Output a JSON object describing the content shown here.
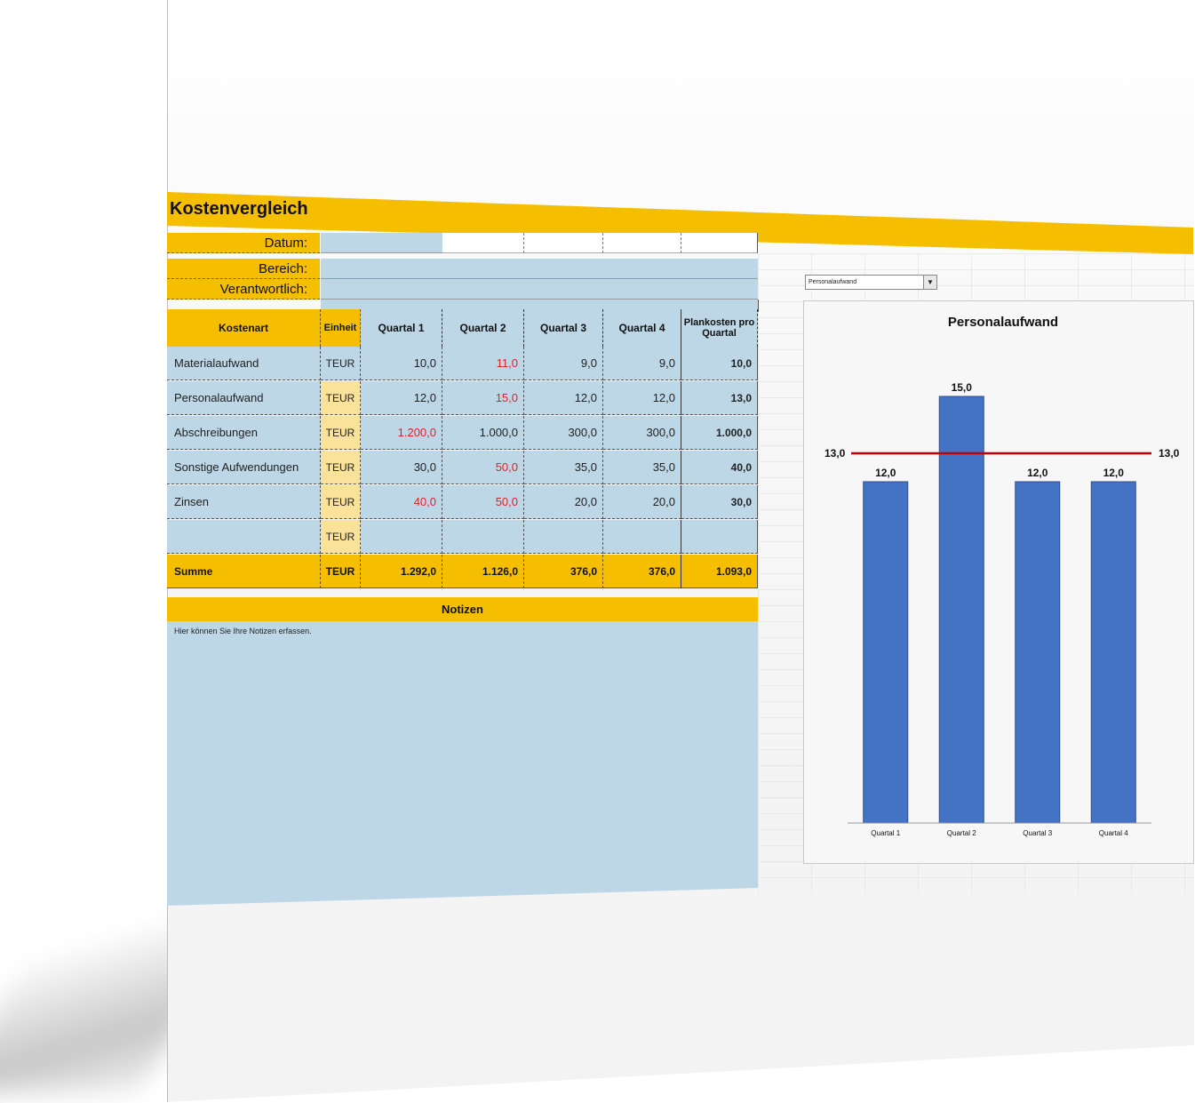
{
  "title": "Kostenvergleich",
  "info": {
    "datum_label": "Datum:",
    "bereich_label": "Bereich:",
    "verantwortlich_label": "Verantwortlich:"
  },
  "table": {
    "headers": [
      "Kostenart",
      "Einheit",
      "Quartal 1",
      "Quartal 2",
      "Quartal 3",
      "Quartal 4",
      "Plankosten pro Quartal"
    ],
    "rows": [
      {
        "name": "Materialaufwand",
        "unit": "TEUR",
        "q1": "10,0",
        "q2": "11,0",
        "q3": "9,0",
        "q4": "9,0",
        "plan": "10,0"
      },
      {
        "name": "Personalaufwand",
        "unit": "TEUR",
        "q1": "12,0",
        "q2": "15,0",
        "q3": "12,0",
        "q4": "12,0",
        "plan": "13,0"
      },
      {
        "name": "Abschreibungen",
        "unit": "TEUR",
        "q1": "1.200,0",
        "q2": "1.000,0",
        "q3": "300,0",
        "q4": "300,0",
        "plan": "1.000,0"
      },
      {
        "name": "Sonstige Aufwendungen",
        "unit": "TEUR",
        "q1": "30,0",
        "q2": "50,0",
        "q3": "35,0",
        "q4": "35,0",
        "plan": "40,0"
      },
      {
        "name": "Zinsen",
        "unit": "TEUR",
        "q1": "40,0",
        "q2": "50,0",
        "q3": "20,0",
        "q4": "20,0",
        "plan": "30,0"
      },
      {
        "name": "",
        "unit": "TEUR",
        "q1": "",
        "q2": "",
        "q3": "",
        "q4": "",
        "plan": ""
      }
    ],
    "sum": {
      "name": "Summe",
      "unit": "TEUR",
      "q1": "1.292,0",
      "q2": "1.126,0",
      "q3": "376,0",
      "q4": "376,0",
      "plan": "1.093,0"
    }
  },
  "notes": {
    "header": "Notizen",
    "text": "Hier können Sie Ihre Notizen erfassen."
  },
  "dropdown": {
    "selected": "Personalaufwand"
  },
  "colors": {
    "accent": "#f5bf00",
    "cell": "#bdd7e7",
    "over_plan": "#e0202a",
    "bar": "#4472c4",
    "plan_line": "#c00000"
  },
  "chart_data": {
    "type": "bar",
    "title": "Personalaufwand",
    "categories": [
      "Quartal 1",
      "Quartal 2",
      "Quartal 3",
      "Quartal 4"
    ],
    "values": [
      12.0,
      15.0,
      12.0,
      12.0
    ],
    "value_labels": [
      "12,0",
      "15,0",
      "12,0",
      "12,0"
    ],
    "reference_line": {
      "value": 13.0,
      "label": "13,0"
    },
    "ylim": [
      0,
      16.5
    ],
    "grid": false,
    "legend": "none"
  }
}
